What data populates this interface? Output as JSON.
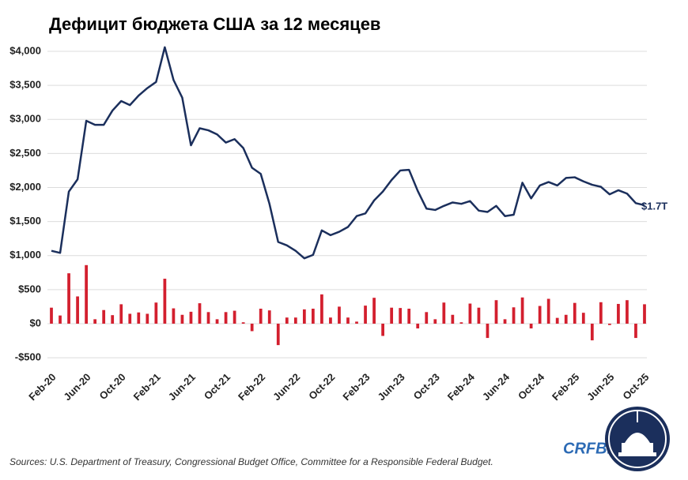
{
  "chart_data": {
    "type": "combo",
    "title": "Дефицит бюджета США за 12 месяцев",
    "categories": [
      "Feb-20",
      null,
      null,
      null,
      "Jun-20",
      null,
      null,
      null,
      "Oct-20",
      null,
      null,
      null,
      "Feb-21",
      null,
      null,
      null,
      "Jun-21",
      null,
      null,
      null,
      "Oct-21",
      null,
      null,
      null,
      "Feb-22",
      null,
      null,
      null,
      "Jun-22",
      null,
      null,
      null,
      "Oct-22",
      null,
      null,
      null,
      "Feb-23",
      null,
      null,
      null,
      "Jun-23",
      null,
      null,
      null,
      "Oct-23",
      null,
      null,
      null,
      "Feb-24",
      null,
      null,
      null,
      "Jun-24",
      null,
      null,
      null,
      "Oct-24",
      null,
      null,
      null,
      "Feb-25",
      null,
      null,
      null,
      "Jun-25",
      null,
      null,
      null,
      "Oct-25"
    ],
    "series": [
      {
        "type": "bar",
        "color": "#d31f2e",
        "values": [
          235,
          120,
          740,
          400,
          860,
          65,
          200,
          125,
          285,
          145,
          165,
          145,
          310,
          660,
          225,
          130,
          175,
          300,
          170,
          65,
          170,
          190,
          20,
          -110,
          220,
          195,
          -315,
          90,
          90,
          210,
          220,
          430,
          90,
          250,
          90,
          30,
          265,
          380,
          -180,
          235,
          230,
          220,
          -70,
          170,
          65,
          310,
          130,
          20,
          295,
          235,
          -210,
          345,
          65,
          240,
          385,
          -70,
          260,
          365,
          85,
          130,
          305,
          160,
          -245,
          315,
          -20,
          290,
          345,
          -210,
          285
        ]
      },
      {
        "type": "line",
        "color": "#1b2f5c",
        "values": [
          1070,
          1040,
          1940,
          2120,
          2980,
          2920,
          2920,
          3130,
          3270,
          3210,
          3350,
          3460,
          3550,
          4060,
          3580,
          3320,
          2620,
          2870,
          2840,
          2780,
          2660,
          2710,
          2580,
          2290,
          2200,
          1760,
          1200,
          1150,
          1070,
          960,
          1010,
          1370,
          1300,
          1350,
          1420,
          1580,
          1620,
          1810,
          1940,
          2110,
          2250,
          2260,
          1950,
          1690,
          1670,
          1730,
          1780,
          1760,
          1800,
          1660,
          1640,
          1730,
          1580,
          1600,
          2070,
          1840,
          2030,
          2080,
          2030,
          2140,
          2150,
          2090,
          2040,
          2010,
          1900,
          1960,
          1910,
          1770,
          1740
        ],
        "end_label": "$1.7T"
      }
    ],
    "ylim": [
      -550,
      4100
    ],
    "yticks": [
      {
        "value": -500,
        "label": "-$500"
      },
      {
        "value": 0,
        "label": "$0"
      },
      {
        "value": 500,
        "label": "$500"
      },
      {
        "value": 1000,
        "label": "$1,000"
      },
      {
        "value": 1500,
        "label": "$1,500"
      },
      {
        "value": 2000,
        "label": "$2,000"
      },
      {
        "value": 2500,
        "label": "$2,500"
      },
      {
        "value": 3000,
        "label": "$3,000"
      },
      {
        "value": 3500,
        "label": "$3,500"
      },
      {
        "value": 4000,
        "label": "$4,000"
      }
    ],
    "grid": true,
    "source": "Sources: U.S. Department of Treasury, Congressional Budget Office, Committee for a Responsible Federal Budget.",
    "brand": "CRFB.org"
  }
}
